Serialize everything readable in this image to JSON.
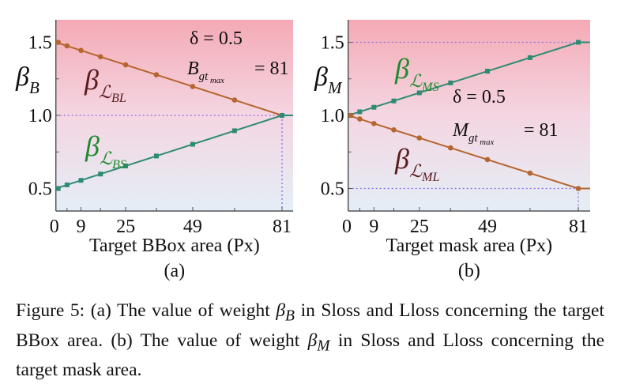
{
  "chart_data": [
    {
      "type": "line",
      "panel_label": "(a)",
      "xlabel": "Target BBox area (Px)",
      "ylabel": "β_B",
      "xticks": [
        0,
        9,
        25,
        49,
        81
      ],
      "yticks": [
        0.5,
        1.0,
        1.5
      ],
      "xlim": [
        0,
        85
      ],
      "ylim": [
        0.34,
        1.65
      ],
      "annotations": [
        "δ = 0.5",
        "B_gt max = 81"
      ],
      "reference_lines": {
        "y": [
          1.0
        ],
        "x": [
          81
        ]
      },
      "series": [
        {
          "name": "β_L_BL",
          "color": "#b5652d",
          "marker": "circle",
          "x": [
            0,
            4,
            9,
            16,
            25,
            36,
            49,
            64,
            81,
            85
          ],
          "y": [
            1.5,
            1.4753,
            1.4444,
            1.4012,
            1.3457,
            1.2778,
            1.1975,
            1.1049,
            1.0,
            1.0
          ]
        },
        {
          "name": "β_L_BS",
          "color": "#2e8b73",
          "marker": "square",
          "x": [
            0,
            4,
            9,
            16,
            25,
            36,
            49,
            64,
            81,
            85
          ],
          "y": [
            0.5,
            0.5247,
            0.5556,
            0.5988,
            0.6543,
            0.7222,
            0.8025,
            0.8951,
            1.0,
            1.0
          ]
        }
      ]
    },
    {
      "type": "line",
      "panel_label": "(b)",
      "xlabel": "Target mask area (Px)",
      "ylabel": "β_M",
      "xticks": [
        0,
        9,
        25,
        49,
        81
      ],
      "yticks": [
        0.5,
        1.0,
        1.5
      ],
      "xlim": [
        0,
        85
      ],
      "ylim": [
        0.34,
        1.65
      ],
      "annotations": [
        "δ = 0.5",
        "M_gt max = 81"
      ],
      "reference_lines": {
        "y": [
          0.5,
          1.5
        ],
        "x": [
          81
        ]
      },
      "series": [
        {
          "name": "β_L_MS",
          "color": "#2e8b73",
          "marker": "square",
          "x": [
            0,
            4,
            9,
            16,
            25,
            36,
            49,
            64,
            81,
            85
          ],
          "y": [
            1.0,
            1.0247,
            1.0556,
            1.0988,
            1.1543,
            1.2222,
            1.3025,
            1.3951,
            1.5,
            1.5
          ]
        },
        {
          "name": "β_L_ML",
          "color": "#b5652d",
          "marker": "circle",
          "x": [
            0,
            4,
            9,
            16,
            25,
            36,
            49,
            64,
            81,
            85
          ],
          "y": [
            1.0,
            0.9753,
            0.9444,
            0.9012,
            0.8457,
            0.7778,
            0.6975,
            0.6049,
            0.5,
            0.5
          ]
        }
      ]
    }
  ],
  "caption": {
    "lead": "Figure 5: (a) The value of weight ",
    "sym1": "β_B",
    "mid": " in Sloss and Lloss concerning the target BBox area. (b) The value of weight ",
    "sym2": "β_M",
    "tail": " in Sloss and Lloss concerning the target mask area."
  },
  "colors": {
    "bg_top": "#f4aab5",
    "bg_mid": "#f4d6e2",
    "bg_bottom": "#e4eef6",
    "ref_line": "#8a6be0"
  }
}
